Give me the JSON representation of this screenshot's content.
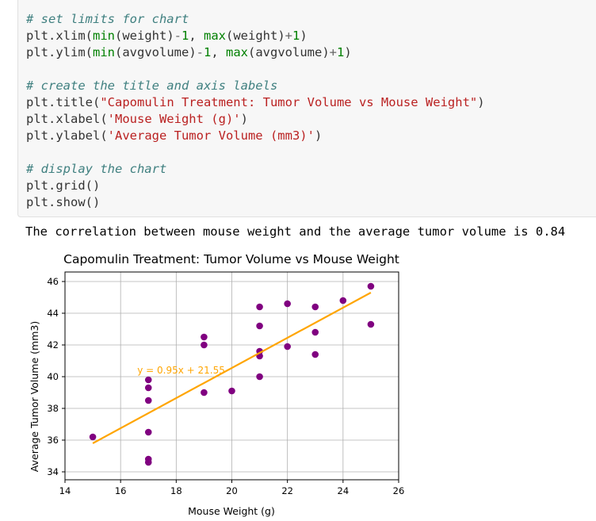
{
  "code_cell": {
    "lines": [
      [
        {
          "t": "# set limits for chart",
          "c": "tok-comment"
        }
      ],
      [
        {
          "t": "plt.xlim("
        },
        {
          "t": "min",
          "c": "tok-builtin"
        },
        {
          "t": "(weight)"
        },
        {
          "t": "-",
          "c": "tok-op"
        },
        {
          "t": "1",
          "c": "tok-num"
        },
        {
          "t": ", "
        },
        {
          "t": "max",
          "c": "tok-builtin"
        },
        {
          "t": "(weight)"
        },
        {
          "t": "+",
          "c": "tok-op"
        },
        {
          "t": "1",
          "c": "tok-num"
        },
        {
          "t": ")"
        }
      ],
      [
        {
          "t": "plt.ylim("
        },
        {
          "t": "min",
          "c": "tok-builtin"
        },
        {
          "t": "(avgvolume)"
        },
        {
          "t": "-",
          "c": "tok-op"
        },
        {
          "t": "1",
          "c": "tok-num"
        },
        {
          "t": ", "
        },
        {
          "t": "max",
          "c": "tok-builtin"
        },
        {
          "t": "(avgvolume)"
        },
        {
          "t": "+",
          "c": "tok-op"
        },
        {
          "t": "1",
          "c": "tok-num"
        },
        {
          "t": ")"
        }
      ],
      [],
      [
        {
          "t": "# create the title and axis labels",
          "c": "tok-comment"
        }
      ],
      [
        {
          "t": "plt.title("
        },
        {
          "t": "\"Capomulin Treatment: Tumor Volume vs Mouse Weight\"",
          "c": "tok-str"
        },
        {
          "t": ")"
        }
      ],
      [
        {
          "t": "plt.xlabel("
        },
        {
          "t": "'Mouse Weight (g)'",
          "c": "tok-str"
        },
        {
          "t": ")"
        }
      ],
      [
        {
          "t": "plt.ylabel("
        },
        {
          "t": "'Average Tumor Volume (mm3)'",
          "c": "tok-str"
        },
        {
          "t": ")"
        }
      ],
      [],
      [
        {
          "t": "# display the chart",
          "c": "tok-comment"
        }
      ],
      [
        {
          "t": "plt.grid()"
        }
      ],
      [
        {
          "t": "plt.show()"
        }
      ]
    ]
  },
  "output_text": "The correlation between mouse weight and the average tumor volume is 0.84",
  "chart_data": {
    "type": "scatter",
    "title": "Capomulin Treatment: Tumor Volume vs Mouse Weight",
    "xlabel": "Mouse Weight (g)",
    "ylabel": "Average Tumor Volume (mm3)",
    "xlim": [
      14,
      26
    ],
    "ylim": [
      33.5,
      46.6
    ],
    "xticks": [
      14,
      16,
      18,
      20,
      22,
      24,
      26
    ],
    "yticks": [
      34,
      36,
      38,
      40,
      42,
      44,
      46
    ],
    "grid": true,
    "point_color": "#800080",
    "line_color": "#ffa500",
    "points": [
      [
        15,
        36.2
      ],
      [
        17,
        34.6
      ],
      [
        17,
        34.8
      ],
      [
        17,
        36.5
      ],
      [
        17,
        38.5
      ],
      [
        17,
        39.3
      ],
      [
        17,
        39.8
      ],
      [
        19,
        39.0
      ],
      [
        19,
        42.0
      ],
      [
        19,
        42.5
      ],
      [
        20,
        39.1
      ],
      [
        21,
        40.0
      ],
      [
        21,
        41.3
      ],
      [
        21,
        41.6
      ],
      [
        21,
        43.2
      ],
      [
        21,
        44.4
      ],
      [
        22,
        41.9
      ],
      [
        22,
        44.6
      ],
      [
        23,
        41.4
      ],
      [
        23,
        42.8
      ],
      [
        23,
        44.4
      ],
      [
        24,
        44.8
      ],
      [
        25,
        43.3
      ],
      [
        25,
        45.7
      ]
    ],
    "regression": {
      "slope": 0.95,
      "intercept": 21.55,
      "x_range": [
        15,
        25
      ]
    },
    "annotation": {
      "text": "y = 0.95x + 21.55",
      "x": 16.6,
      "y": 40.2
    }
  }
}
